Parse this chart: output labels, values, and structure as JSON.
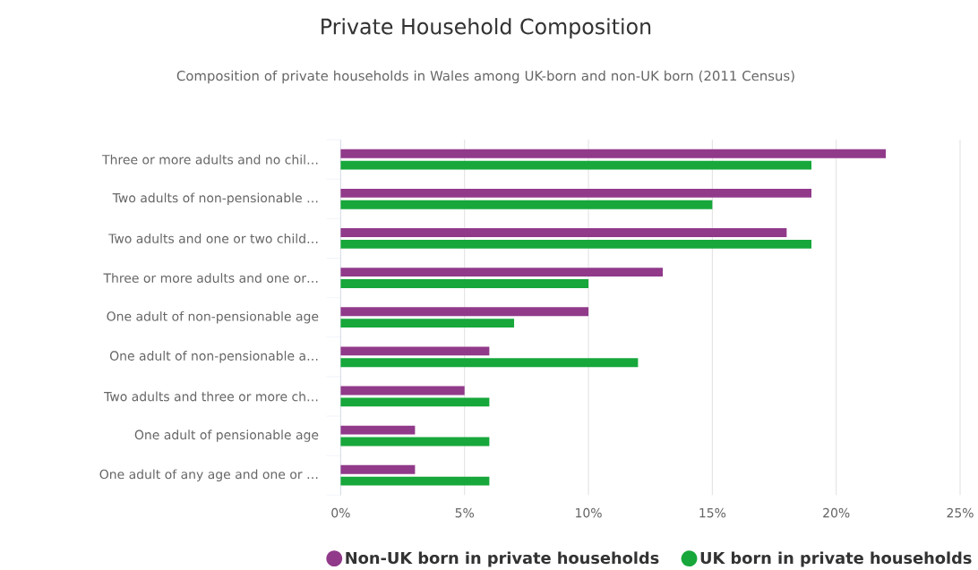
{
  "chart_data": {
    "type": "bar",
    "orientation": "horizontal",
    "title": "Private Household Composition",
    "subtitle": "Composition of private households in Wales among UK-born and non-UK born (2011 Census)",
    "categories": [
      "Three or more adults and no chil…",
      "Two adults of non-pensionable …",
      "Two adults and one or two child…",
      "Three or more adults and one or…",
      "One adult of non-pensionable age",
      "One adult of non-pensionable a…",
      "Two adults and three or more ch…",
      "One adult of pensionable age",
      "One adult of any age and one or …"
    ],
    "series": [
      {
        "name": "Non-UK born in private households",
        "color": "#913a8a",
        "values": [
          22,
          19,
          18,
          13,
          10,
          6,
          5,
          3,
          3
        ]
      },
      {
        "name": "UK born in private households",
        "color": "#17a73b",
        "values": [
          19,
          15,
          19,
          10,
          7,
          12,
          6,
          6,
          6
        ]
      }
    ],
    "xlim": [
      0,
      25
    ],
    "xticks": [
      {
        "value": 0,
        "label": "0%"
      },
      {
        "value": 5,
        "label": "5%"
      },
      {
        "value": 10,
        "label": "10%"
      },
      {
        "value": 15,
        "label": "15%"
      },
      {
        "value": 20,
        "label": "20%"
      },
      {
        "value": 25,
        "label": "25%"
      }
    ],
    "grid": "x",
    "legend": "bottom"
  }
}
